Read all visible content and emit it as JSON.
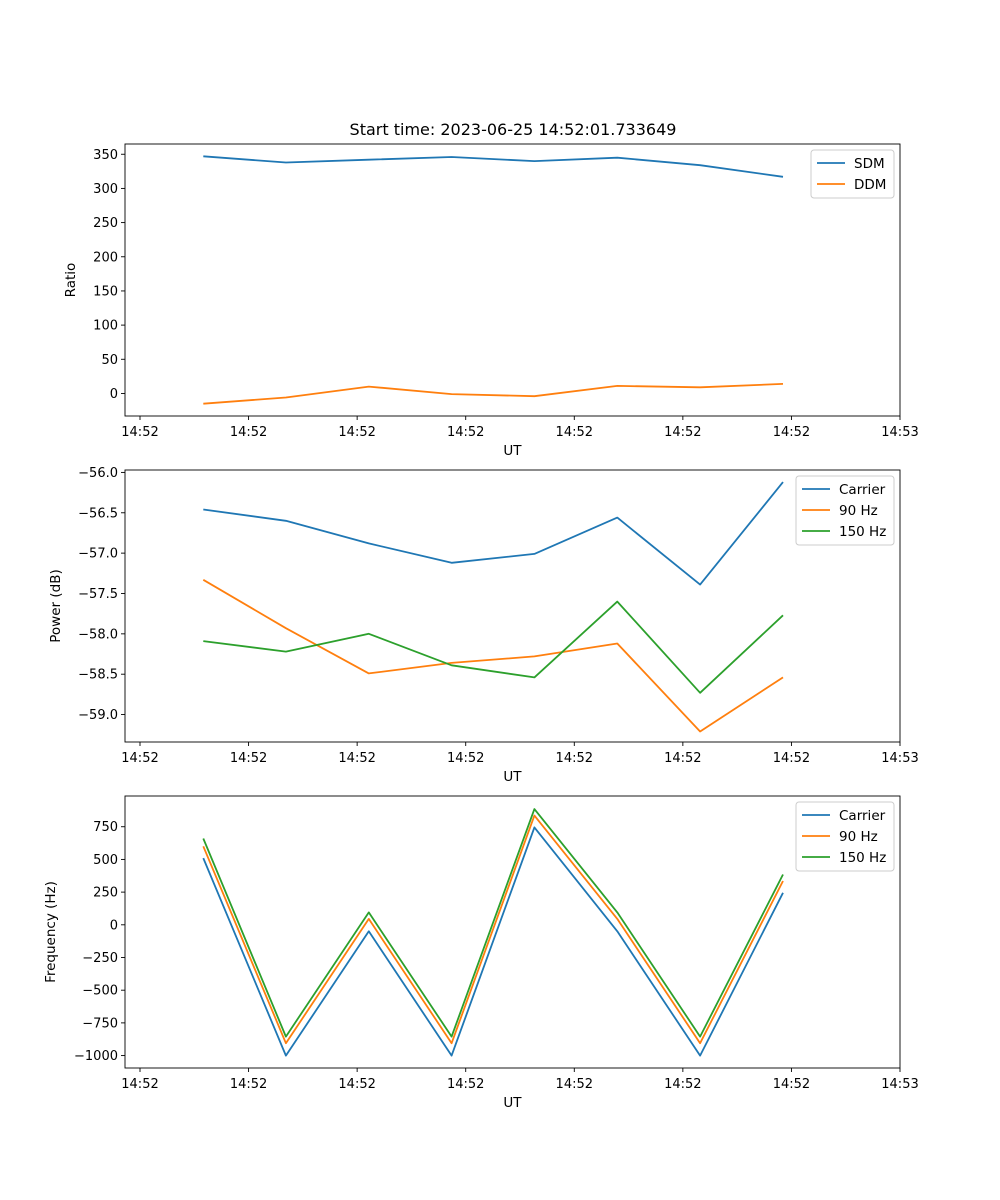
{
  "figure_title": "Start time: 2023-06-25 14:52:01.733649",
  "chart_data": [
    {
      "type": "line",
      "title": "Start time: 2023-06-25 14:52:01.733649",
      "xlabel": "UT",
      "ylabel": "Ratio",
      "ylim": [
        -33,
        365
      ],
      "yticks": [
        0,
        50,
        100,
        150,
        200,
        250,
        300,
        350
      ],
      "xticks": [
        "14:52",
        "14:52",
        "14:52",
        "14:52",
        "14:52",
        "14:52",
        "14:52",
        "14:53"
      ],
      "grid": false,
      "legend_position": "top-right",
      "series": [
        {
          "name": "SDM",
          "color": "#1f77b4",
          "values": [
            347,
            338,
            342,
            346,
            340,
            345,
            334,
            317
          ]
        },
        {
          "name": "DDM",
          "color": "#ff7f0e",
          "values": [
            -15,
            -6,
            10,
            -1,
            -4,
            11,
            9,
            14
          ]
        }
      ]
    },
    {
      "type": "line",
      "title": "",
      "xlabel": "UT",
      "ylabel": "Power (dB)",
      "ylim": [
        -59.34,
        -55.97
      ],
      "yticks": [
        -59.0,
        -58.5,
        -58.0,
        -57.5,
        -57.0,
        -56.5,
        -56.0
      ],
      "xticks": [
        "14:52",
        "14:52",
        "14:52",
        "14:52",
        "14:52",
        "14:52",
        "14:52",
        "14:53"
      ],
      "grid": false,
      "legend_position": "top-right",
      "series": [
        {
          "name": "Carrier",
          "color": "#1f77b4",
          "values": [
            -56.46,
            -56.6,
            -56.88,
            -57.12,
            -57.01,
            -56.56,
            -57.39,
            -56.12
          ]
        },
        {
          "name": "90 Hz",
          "color": "#ff7f0e",
          "values": [
            -57.33,
            -57.93,
            -58.49,
            -58.36,
            -58.28,
            -58.12,
            -59.21,
            -58.54
          ]
        },
        {
          "name": "150 Hz",
          "color": "#2ca02c",
          "values": [
            -58.09,
            -58.22,
            -58.0,
            -58.39,
            -58.54,
            -57.6,
            -58.73,
            -57.77
          ]
        }
      ]
    },
    {
      "type": "line",
      "title": "",
      "xlabel": "UT",
      "ylabel": "Frequency (Hz)",
      "ylim": [
        -1095,
        985
      ],
      "yticks": [
        -1000,
        -750,
        -500,
        -250,
        0,
        250,
        500,
        750
      ],
      "xticks": [
        "14:52",
        "14:52",
        "14:52",
        "14:52",
        "14:52",
        "14:52",
        "14:52",
        "14:53"
      ],
      "grid": false,
      "legend_position": "top-right",
      "series": [
        {
          "name": "Carrier",
          "color": "#1f77b4",
          "values": [
            510,
            -1000,
            -50,
            -1000,
            745,
            -50,
            -1000,
            245
          ]
        },
        {
          "name": "90 Hz",
          "color": "#ff7f0e",
          "values": [
            600,
            -905,
            45,
            -905,
            835,
            45,
            -905,
            335
          ]
        },
        {
          "name": "150 Hz",
          "color": "#2ca02c",
          "values": [
            660,
            -855,
            95,
            -855,
            885,
            95,
            -855,
            385
          ]
        }
      ]
    }
  ]
}
